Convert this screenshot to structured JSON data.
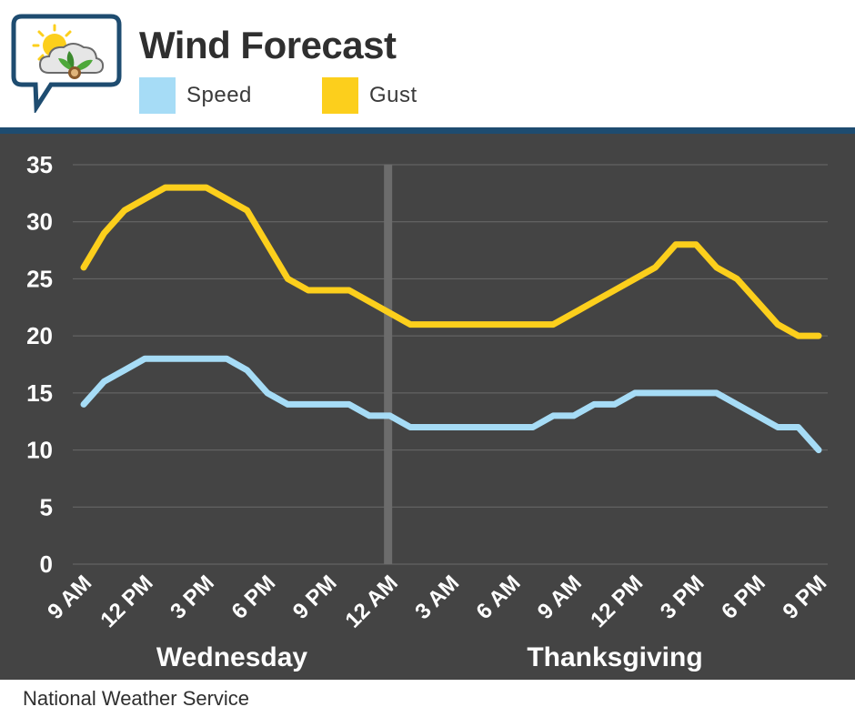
{
  "header": {
    "title": "Wind Forecast",
    "logo_icon": "weather-sun-cloud-leaf-icon"
  },
  "legend": [
    {
      "label": "Speed",
      "color": "#a6dcf6"
    },
    {
      "label": "Gust",
      "color": "#fccf1c"
    }
  ],
  "footer": {
    "source": "National Weather Service"
  },
  "chart_data": {
    "type": "line",
    "title": "Wind Forecast",
    "xlabel": "",
    "ylabel": "",
    "ylim": [
      0,
      35
    ],
    "yticks": [
      0,
      5,
      10,
      15,
      20,
      25,
      30,
      35
    ],
    "grid": true,
    "legend_placement": "top",
    "background": "#444444",
    "x": [
      "9 AM",
      "10 AM",
      "11 AM",
      "12 PM",
      "1 PM",
      "2 PM",
      "3 PM",
      "4 PM",
      "5 PM",
      "6 PM",
      "7 PM",
      "8 PM",
      "9 PM",
      "10 PM",
      "11 PM",
      "12 AM",
      "1 AM",
      "2 AM",
      "3 AM",
      "4 AM",
      "5 AM",
      "6 AM",
      "7 AM",
      "8 AM",
      "9 AM",
      "10 AM",
      "11 AM",
      "12 PM",
      "1 PM",
      "2 PM",
      "3 PM",
      "4 PM",
      "5 PM",
      "6 PM",
      "7 PM",
      "8 PM",
      "9 PM"
    ],
    "x_tick_labels": [
      "9 AM",
      "12 PM",
      "3 PM",
      "6 PM",
      "9 PM",
      "12 AM",
      "3 AM",
      "6 AM",
      "9 AM",
      "12 PM",
      "3 PM",
      "6 PM",
      "9 PM"
    ],
    "x_tick_every": 3,
    "day_labels": [
      "Wednesday",
      "Thanksgiving"
    ],
    "day_divider_at_index": 15,
    "series": [
      {
        "name": "Speed",
        "color": "#a6dcf6",
        "values": [
          14,
          16,
          17,
          18,
          18,
          18,
          18,
          18,
          17,
          15,
          14,
          14,
          14,
          14,
          13,
          13,
          12,
          12,
          12,
          12,
          12,
          12,
          12,
          13,
          13,
          14,
          14,
          15,
          15,
          15,
          15,
          15,
          14,
          13,
          12,
          12,
          10
        ]
      },
      {
        "name": "Gust",
        "color": "#fccf1c",
        "values": [
          26,
          29,
          31,
          32,
          33,
          33,
          33,
          32,
          31,
          28,
          25,
          24,
          24,
          24,
          23,
          22,
          21,
          21,
          21,
          21,
          21,
          21,
          21,
          21,
          22,
          23,
          24,
          25,
          26,
          28,
          28,
          26,
          25,
          23,
          21,
          20,
          20
        ]
      }
    ]
  }
}
